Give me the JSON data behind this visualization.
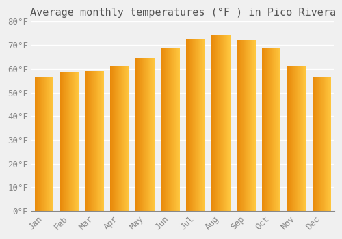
{
  "title": "Average monthly temperatures (°F ) in Pico Rivera",
  "months": [
    "Jan",
    "Feb",
    "Mar",
    "Apr",
    "May",
    "Jun",
    "Jul",
    "Aug",
    "Sep",
    "Oct",
    "Nov",
    "Dec"
  ],
  "values": [
    56.5,
    58.5,
    59.0,
    61.5,
    64.5,
    68.5,
    72.5,
    74.5,
    72.0,
    68.5,
    61.5,
    56.5
  ],
  "bar_color_left": "#E8890A",
  "bar_color_right": "#FFC840",
  "background_color": "#f0f0f0",
  "grid_color": "#ffffff",
  "ylim": [
    0,
    80
  ],
  "yticks": [
    0,
    10,
    20,
    30,
    40,
    50,
    60,
    70,
    80
  ],
  "tick_label_color": "#888888",
  "title_color": "#555555",
  "title_fontsize": 11,
  "tick_fontsize": 9,
  "bar_width": 0.75
}
